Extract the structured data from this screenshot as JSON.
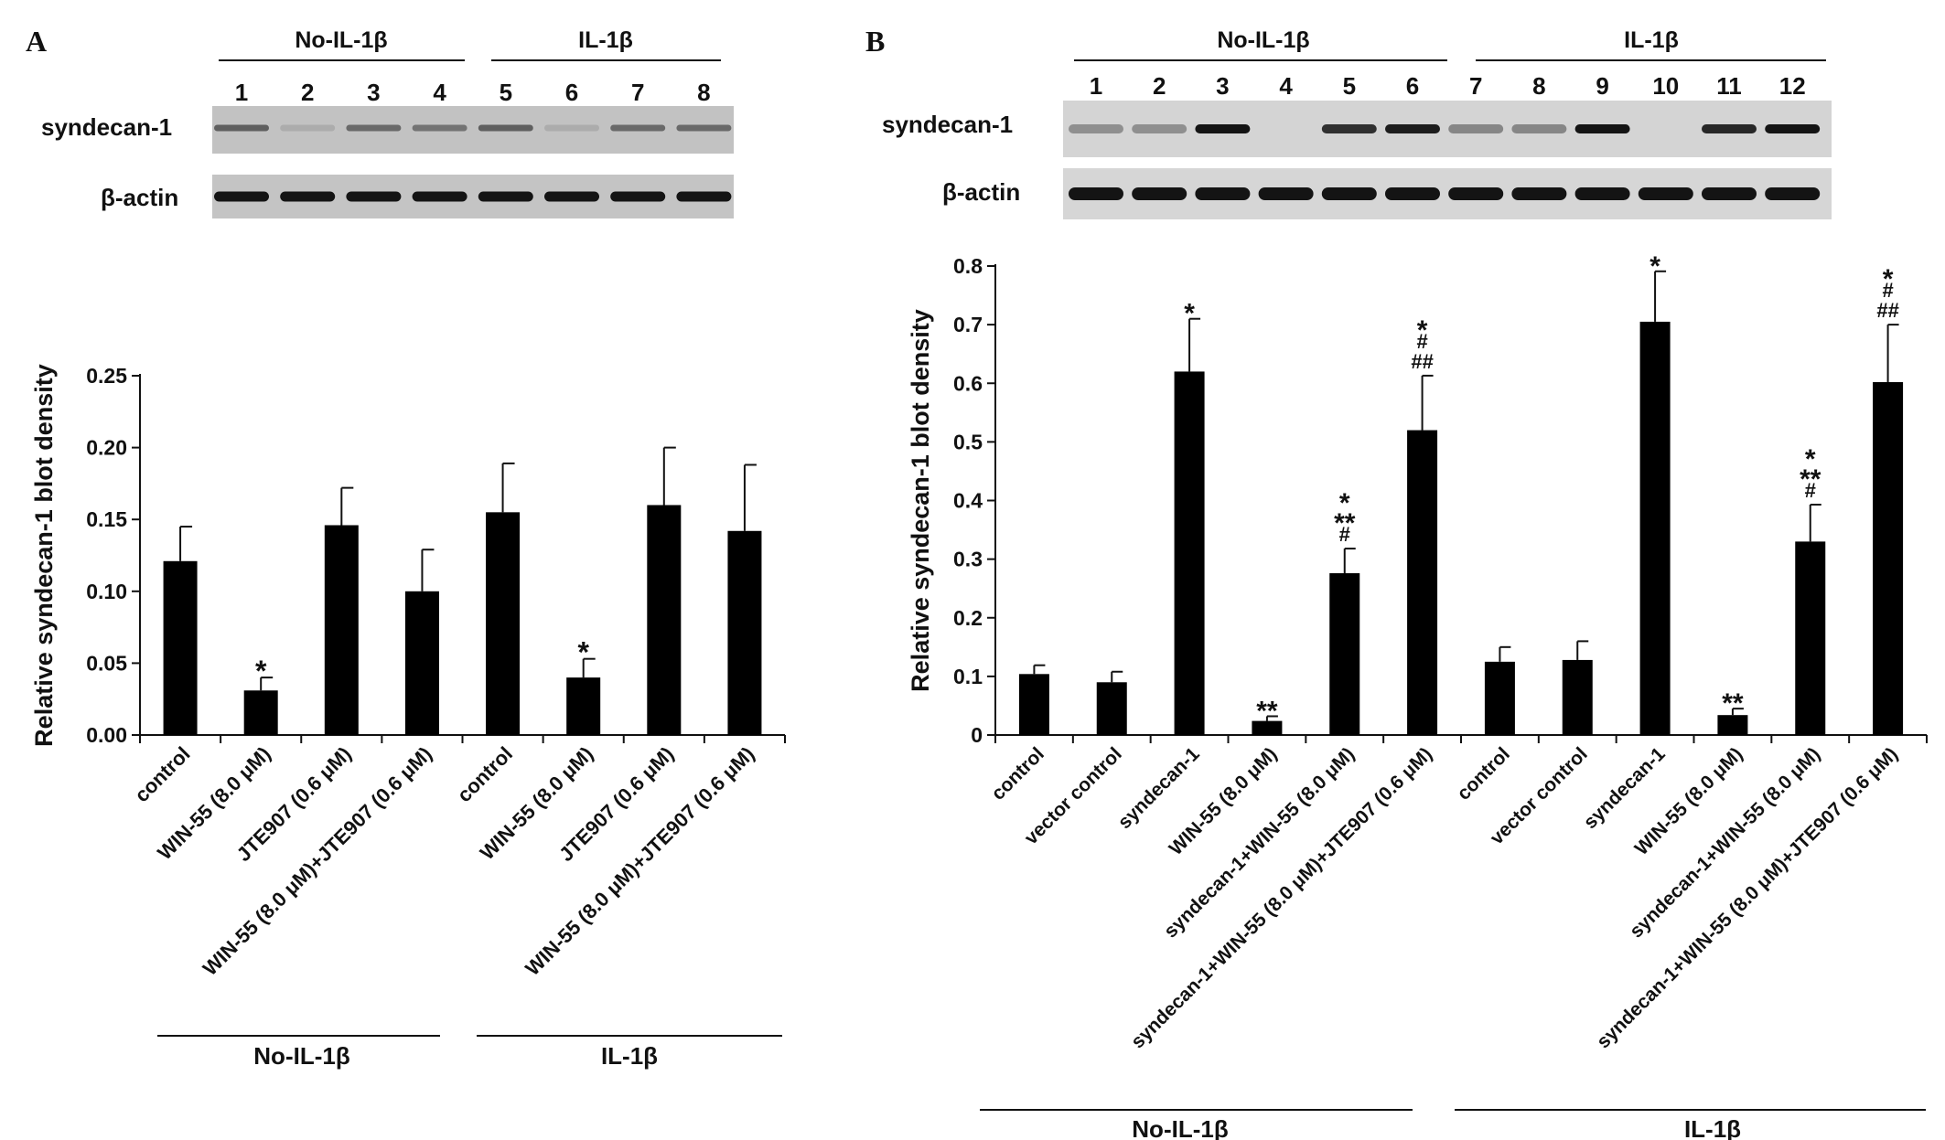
{
  "panels": [
    {
      "label": "A",
      "blot": {
        "group_headers": [
          "No-IL-1β",
          "IL-1β"
        ],
        "lanes": [
          "1",
          "2",
          "3",
          "4",
          "5",
          "6",
          "7",
          "8"
        ],
        "row_labels": [
          "syndecan-1",
          "β-actin"
        ],
        "band_intensity": {
          "syndecan-1": [
            0.55,
            0.15,
            0.5,
            0.45,
            0.55,
            0.15,
            0.5,
            0.5
          ],
          "β-actin": [
            0.95,
            0.95,
            0.95,
            0.95,
            0.95,
            0.95,
            0.95,
            0.95
          ]
        }
      },
      "group_footers": [
        "No-IL-1β",
        "IL-1β"
      ]
    },
    {
      "label": "B",
      "blot": {
        "group_headers": [
          "No-IL-1β",
          "IL-1β"
        ],
        "lanes": [
          "1",
          "2",
          "3",
          "4",
          "5",
          "6",
          "7",
          "8",
          "9",
          "10",
          "11",
          "12"
        ],
        "row_labels": [
          "syndecan-1",
          "β-actin"
        ],
        "band_intensity": {
          "syndecan-1": [
            0.3,
            0.3,
            0.95,
            0.05,
            0.8,
            0.9,
            0.35,
            0.35,
            0.95,
            0.05,
            0.85,
            0.95
          ],
          "β-actin": [
            0.95,
            0.95,
            0.95,
            0.95,
            0.95,
            0.95,
            0.95,
            0.95,
            0.95,
            0.95,
            0.95,
            0.95
          ]
        }
      },
      "group_footers": [
        "No-IL-1β",
        "IL-1β"
      ]
    }
  ],
  "chart_data": [
    {
      "type": "bar",
      "panel": "A",
      "title": "",
      "xlabel": "",
      "ylabel": "Relative syndecan-1 blot density",
      "ylim": [
        0,
        0.25
      ],
      "yticks": [
        "0.00",
        "0.05",
        "0.10",
        "0.15",
        "0.20",
        "0.25"
      ],
      "categories": [
        "control",
        "WIN-55 (8.0 μM)",
        "JTE907 (0.6 μM)",
        "WIN-55 (8.0 μM)+JTE907 (0.6 μM)",
        "control",
        "WIN-55 (8.0 μM)",
        "JTE907 (0.6 μM)",
        "WIN-55 (8.0 μM)+JTE907 (0.6 μM)"
      ],
      "values": [
        0.121,
        0.031,
        0.146,
        0.1,
        0.155,
        0.04,
        0.16,
        0.142
      ],
      "errors": [
        0.024,
        0.009,
        0.026,
        0.029,
        0.034,
        0.013,
        0.04,
        0.046
      ],
      "annotations": [
        "",
        "*",
        "",
        "",
        "",
        "*",
        "",
        ""
      ],
      "color": "#000000"
    },
    {
      "type": "bar",
      "panel": "B",
      "title": "",
      "xlabel": "",
      "ylabel": "Relative syndecan-1 blot density",
      "ylim": [
        0,
        0.8
      ],
      "yticks": [
        "0",
        "0.1",
        "0.2",
        "0.3",
        "0.4",
        "0.5",
        "0.6",
        "0.7",
        "0.8"
      ],
      "categories": [
        "control",
        "vector control",
        "syndecan-1",
        "WIN-55 (8.0 μM)",
        "syndecan-1+WIN-55 (8.0 μM)",
        "syndecan-1+WIN-55 (8.0 μM)+JTE907 (0.6 μM)",
        "control",
        "vector control",
        "syndecan-1",
        "WIN-55 (8.0 μM)",
        "syndecan-1+WIN-55 (8.0 μM)",
        "syndecan-1+WIN-55 (8.0 μM)+JTE907 (0.6 μM)"
      ],
      "values": [
        0.104,
        0.09,
        0.62,
        0.024,
        0.276,
        0.52,
        0.125,
        0.128,
        0.705,
        0.034,
        0.33,
        0.602
      ],
      "errors": [
        0.015,
        0.018,
        0.09,
        0.008,
        0.042,
        0.093,
        0.025,
        0.032,
        0.086,
        0.011,
        0.063,
        0.098
      ],
      "annotations": [
        [],
        [],
        [
          "*"
        ],
        [
          "**"
        ],
        [
          "*",
          "**",
          "#"
        ],
        [
          "*",
          "#",
          "##"
        ],
        [],
        [],
        [
          "*"
        ],
        [
          "**"
        ],
        [
          "*",
          "**",
          "#"
        ],
        [
          "*",
          "#",
          "##"
        ]
      ],
      "color": "#000000"
    }
  ]
}
